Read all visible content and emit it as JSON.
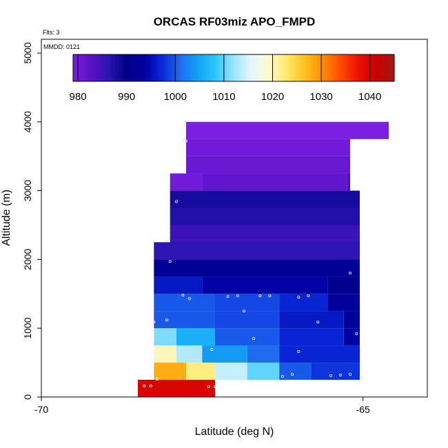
{
  "chart_data": {
    "type": "heatmap",
    "title": "ORCAS RF03miz APO_FMPD",
    "annotations": {
      "flights": "Flts: 3",
      "date": "MMDD: 0121"
    },
    "xlabel": "Latitude (deg N)",
    "ylabel": "Altitude (m)",
    "xlim": [
      -70,
      -64
    ],
    "ylim": [
      0,
      5200
    ],
    "x_ticks": [
      "-70",
      "-65"
    ],
    "x_tick_values": [
      -70,
      -65
    ],
    "y_ticks": [
      "0",
      "1000",
      "2000",
      "3000",
      "4000",
      "5000"
    ],
    "y_tick_values": [
      0,
      1000,
      2000,
      3000,
      4000,
      5000
    ],
    "colorbar": {
      "min": 979,
      "max": 1045,
      "ticks": [
        "980",
        "990",
        "1000",
        "1010",
        "1020",
        "1030",
        "1040"
      ],
      "tick_values": [
        980,
        990,
        1000,
        1010,
        1020,
        1030,
        1040
      ],
      "colors": [
        "#7b1fe0",
        "#5a12c6",
        "#2a14b0",
        "#00008a",
        "#00009e",
        "#0a28d8",
        "#1f6cf0",
        "#10a4f4",
        "#2cc8ff",
        "#9ee4ff",
        "#e6f6ff",
        "#fffacc",
        "#ffe865",
        "#ffc020",
        "#ff8c00",
        "#ff4a00",
        "#ee1000",
        "#cc0000",
        "#a01818"
      ]
    },
    "bin_height_m": 250,
    "cells": [
      {
        "x0": -68.5,
        "x1": -67.3,
        "alt": 0,
        "v": 1040
      },
      {
        "x0": -68.25,
        "x1": -67.75,
        "alt": 250,
        "v": 1028
      },
      {
        "x0": -67.75,
        "x1": -67.3,
        "alt": 250,
        "v": 1022
      },
      {
        "x0": -67.3,
        "x1": -66.8,
        "alt": 250,
        "v": 1014
      },
      {
        "x0": -66.8,
        "x1": -66.3,
        "alt": 250,
        "v": 1010
      },
      {
        "x0": -66.3,
        "x1": -65.8,
        "alt": 250,
        "v": 1000
      },
      {
        "x0": -65.8,
        "x1": -65.05,
        "alt": 250,
        "v": 998
      },
      {
        "x0": -68.25,
        "x1": -67.9,
        "alt": 500,
        "v": 1020
      },
      {
        "x0": -67.9,
        "x1": -67.5,
        "alt": 500,
        "v": 1013
      },
      {
        "x0": -67.5,
        "x1": -66.8,
        "alt": 500,
        "v": 1004
      },
      {
        "x0": -66.8,
        "x1": -66.3,
        "alt": 500,
        "v": 1001
      },
      {
        "x0": -66.3,
        "x1": -65.05,
        "alt": 500,
        "v": 997
      },
      {
        "x0": -68.25,
        "x1": -67.9,
        "alt": 750,
        "v": 1011
      },
      {
        "x0": -67.9,
        "x1": -67.3,
        "alt": 750,
        "v": 1006
      },
      {
        "x0": -67.3,
        "x1": -66.3,
        "alt": 750,
        "v": 1000
      },
      {
        "x0": -66.3,
        "x1": -65.3,
        "alt": 750,
        "v": 997
      },
      {
        "x0": -65.3,
        "x1": -65.05,
        "alt": 750,
        "v": 994
      },
      {
        "x0": -68.25,
        "x1": -67.3,
        "alt": 1000,
        "v": 1000
      },
      {
        "x0": -67.3,
        "x1": -66.3,
        "alt": 1000,
        "v": 999
      },
      {
        "x0": -66.3,
        "x1": -65.3,
        "alt": 1000,
        "v": 996
      },
      {
        "x0": -65.3,
        "x1": -65.05,
        "alt": 1000,
        "v": 993
      },
      {
        "x0": -68.25,
        "x1": -67.3,
        "alt": 1250,
        "v": 1000
      },
      {
        "x0": -67.3,
        "x1": -66.3,
        "alt": 1250,
        "v": 999
      },
      {
        "x0": -66.3,
        "x1": -65.55,
        "alt": 1250,
        "v": 997
      },
      {
        "x0": -65.55,
        "x1": -65.05,
        "alt": 1250,
        "v": 993
      },
      {
        "x0": -68.25,
        "x1": -67.5,
        "alt": 1500,
        "v": 996
      },
      {
        "x0": -67.5,
        "x1": -65.55,
        "alt": 1500,
        "v": 994
      },
      {
        "x0": -65.55,
        "x1": -65.05,
        "alt": 1500,
        "v": 991
      },
      {
        "x0": -68.25,
        "x1": -65.05,
        "alt": 1750,
        "v": 992
      },
      {
        "x0": -68.25,
        "x1": -65.05,
        "alt": 2000,
        "v": 986
      },
      {
        "x0": -68.0,
        "x1": -65.05,
        "alt": 2250,
        "v": 985
      },
      {
        "x0": -68.0,
        "x1": -65.05,
        "alt": 2500,
        "v": 987
      },
      {
        "x0": -68.0,
        "x1": -65.05,
        "alt": 2750,
        "v": 988
      },
      {
        "x0": -68.0,
        "x1": -67.5,
        "alt": 3000,
        "v": 980
      },
      {
        "x0": -67.5,
        "x1": -65.25,
        "alt": 3000,
        "v": 982
      },
      {
        "x0": -65.25,
        "x1": -65.2,
        "alt": 3000,
        "v": 984
      },
      {
        "x0": -67.75,
        "x1": -65.2,
        "alt": 3250,
        "v": 981
      },
      {
        "x0": -67.75,
        "x1": -65.2,
        "alt": 3500,
        "v": 980
      },
      {
        "x0": -67.75,
        "x1": -64.6,
        "alt": 3750,
        "v": 979
      }
    ],
    "points": [
      {
        "x": -67.75,
        "y": 3720
      },
      {
        "x": -64.7,
        "y": 3560
      },
      {
        "x": -67.9,
        "y": 2840
      },
      {
        "x": -65.0,
        "y": 2680
      },
      {
        "x": -68.0,
        "y": 1970
      },
      {
        "x": -65.2,
        "y": 1800
      },
      {
        "x": -67.8,
        "y": 1480
      },
      {
        "x": -67.7,
        "y": 1430
      },
      {
        "x": -67.1,
        "y": 1460
      },
      {
        "x": -66.95,
        "y": 1470
      },
      {
        "x": -66.6,
        "y": 1470
      },
      {
        "x": -66.45,
        "y": 1470
      },
      {
        "x": -66.0,
        "y": 1450
      },
      {
        "x": -65.85,
        "y": 1470
      },
      {
        "x": -66.85,
        "y": 1250
      },
      {
        "x": -68.05,
        "y": 1120
      },
      {
        "x": -68.25,
        "y": 1090
      },
      {
        "x": -65.7,
        "y": 1090
      },
      {
        "x": -65.1,
        "y": 920
      },
      {
        "x": -66.7,
        "y": 850
      },
      {
        "x": -67.35,
        "y": 690
      },
      {
        "x": -66.0,
        "y": 660
      },
      {
        "x": -68.35,
        "y": 400
      },
      {
        "x": -68.2,
        "y": 260
      },
      {
        "x": -66.25,
        "y": 300
      },
      {
        "x": -66.1,
        "y": 330
      },
      {
        "x": -65.5,
        "y": 310
      },
      {
        "x": -65.35,
        "y": 320
      },
      {
        "x": -65.2,
        "y": 330
      },
      {
        "x": -68.4,
        "y": 160
      },
      {
        "x": -68.3,
        "y": 160
      },
      {
        "x": -67.4,
        "y": 150
      },
      {
        "x": -67.3,
        "y": 150
      }
    ]
  }
}
